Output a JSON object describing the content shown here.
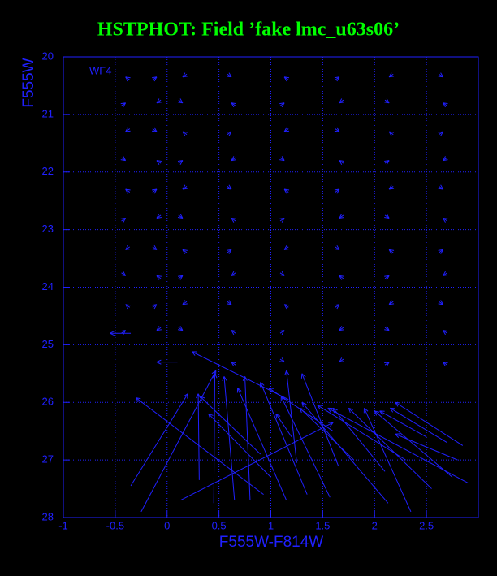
{
  "chart_data": {
    "type": "vector",
    "title": "HSTPHOT: Field ’fake lmc_u63s06’",
    "annotation": "WF4",
    "x_label": "F555W-F814W",
    "y_label": "F555W",
    "color": "#2020ff",
    "title_color": "#00ff00",
    "grid": true,
    "y_inverted": true,
    "xlim": [
      -1,
      3
    ],
    "ylim": [
      20,
      28
    ],
    "xticks": [
      -1,
      -0.5,
      0,
      0.5,
      1,
      1.5,
      2,
      2.5
    ],
    "yticks": [
      20,
      21,
      22,
      23,
      24,
      25,
      26,
      27,
      28
    ],
    "x0": [
      -0.36,
      -0.14,
      0.19,
      0.58,
      1.17,
      1.62,
      2.18,
      2.62,
      -0.44,
      -0.06,
      0.11,
      0.66,
      1.09,
      1.7,
      2.1,
      2.7,
      -0.36,
      -0.14,
      0.19,
      0.58,
      1.17,
      1.62,
      2.18,
      2.62,
      -0.44,
      -0.06,
      0.11,
      0.66,
      1.09,
      1.7,
      2.1,
      2.7,
      -0.36,
      -0.14,
      0.19,
      0.58,
      1.17,
      1.62,
      2.18,
      2.62,
      -0.44,
      -0.06,
      0.11,
      0.66,
      1.09,
      1.7,
      2.1,
      2.7,
      -0.36,
      -0.14,
      0.19,
      0.58,
      1.17,
      1.62,
      2.18,
      2.62,
      -0.44,
      -0.06,
      0.11,
      0.66,
      1.09,
      1.7,
      2.1,
      2.7,
      -0.36,
      -0.14,
      0.19,
      0.58,
      1.17,
      1.62,
      2.18,
      2.62,
      -0.44,
      -0.06,
      0.11,
      0.66,
      1.09,
      1.7,
      2.1,
      2.7,
      0.66,
      1.09,
      1.7,
      2.1,
      2.7,
      -0.35,
      0.1,
      -0.35,
      1.17,
      0.93,
      0.13,
      0.31,
      0.45,
      0.65,
      0.8,
      -0.25,
      1.15,
      1.35,
      1.57,
      1.25,
      0.9,
      1.65,
      2.13,
      2.1,
      2.55,
      2.9,
      2.75,
      2.35,
      2.85,
      2.7,
      2.5,
      2.3,
      1.6,
      1.0,
      2.8,
      1.2,
      1.8
    ],
    "y0": [
      20.4,
      20.4,
      20.3,
      20.3,
      20.4,
      20.4,
      20.3,
      20.3,
      20.85,
      20.75,
      20.75,
      20.85,
      20.85,
      20.75,
      20.75,
      20.85,
      21.25,
      21.25,
      21.35,
      21.35,
      21.25,
      21.25,
      21.35,
      21.35,
      21.75,
      21.85,
      21.85,
      21.75,
      21.75,
      21.85,
      21.85,
      21.75,
      22.35,
      22.35,
      22.25,
      22.25,
      22.35,
      22.35,
      22.25,
      22.25,
      22.85,
      22.75,
      22.75,
      22.85,
      22.85,
      22.75,
      22.75,
      22.85,
      23.3,
      23.3,
      23.4,
      23.4,
      23.3,
      23.3,
      23.4,
      23.4,
      23.75,
      23.85,
      23.85,
      23.75,
      23.75,
      23.85,
      23.85,
      23.75,
      24.35,
      24.35,
      24.25,
      24.25,
      24.35,
      24.35,
      24.25,
      24.25,
      24.8,
      24.7,
      24.7,
      24.8,
      24.8,
      24.7,
      24.7,
      24.8,
      25.35,
      25.25,
      25.25,
      25.35,
      25.35,
      24.8,
      25.3,
      27.45,
      25.95,
      27.6,
      27.7,
      27.35,
      27.75,
      27.7,
      27.7,
      27.9,
      27.7,
      27.6,
      27.65,
      27.05,
      26.9,
      27.1,
      27.75,
      27.2,
      27.5,
      27.4,
      27.3,
      27.9,
      26.75,
      26.7,
      26.6,
      27.0,
      26.5,
      27.3,
      27.0,
      26.6,
      27.0
    ],
    "x1": [
      -0.4,
      -0.1,
      0.15,
      0.62,
      1.13,
      1.66,
      2.14,
      2.66,
      -0.4,
      -0.1,
      0.15,
      0.62,
      1.13,
      1.66,
      2.14,
      2.66,
      -0.4,
      -0.1,
      0.15,
      0.62,
      1.13,
      1.66,
      2.14,
      2.66,
      -0.4,
      -0.1,
      0.15,
      0.62,
      1.13,
      1.66,
      2.14,
      2.66,
      -0.4,
      -0.1,
      0.15,
      0.62,
      1.13,
      1.66,
      2.14,
      2.66,
      -0.4,
      -0.1,
      0.15,
      0.62,
      1.13,
      1.66,
      2.14,
      2.66,
      -0.4,
      -0.1,
      0.15,
      0.62,
      1.13,
      1.66,
      2.14,
      2.66,
      -0.4,
      -0.1,
      0.15,
      0.62,
      1.13,
      1.66,
      2.14,
      2.66,
      -0.4,
      -0.1,
      0.15,
      0.62,
      1.13,
      1.66,
      2.14,
      2.66,
      -0.4,
      -0.1,
      0.15,
      0.62,
      1.13,
      1.66,
      2.14,
      2.66,
      0.62,
      1.13,
      1.66,
      2.14,
      2.66,
      -0.55,
      -0.1,
      0.2,
      0.24,
      -0.3,
      1.6,
      0.3,
      0.46,
      0.55,
      0.75,
      0.47,
      0.68,
      0.9,
      1.1,
      1.15,
      0.32,
      1.3,
      1.3,
      1.6,
      1.75,
      1.55,
      2.0,
      1.9,
      2.2,
      2.15,
      2.05,
      1.45,
      0.98,
      0.4,
      2.2,
      1.05,
      1.28
    ],
    "y1": [
      20.35,
      20.35,
      20.35,
      20.35,
      20.35,
      20.35,
      20.35,
      20.35,
      20.8,
      20.8,
      20.8,
      20.8,
      20.8,
      20.8,
      20.8,
      20.8,
      21.3,
      21.3,
      21.3,
      21.3,
      21.3,
      21.3,
      21.3,
      21.3,
      21.8,
      21.8,
      21.8,
      21.8,
      21.8,
      21.8,
      21.8,
      21.8,
      22.3,
      22.3,
      22.3,
      22.3,
      22.3,
      22.3,
      22.3,
      22.3,
      22.8,
      22.8,
      22.8,
      22.8,
      22.8,
      22.8,
      22.8,
      22.8,
      23.35,
      23.35,
      23.35,
      23.35,
      23.35,
      23.35,
      23.35,
      23.35,
      23.8,
      23.8,
      23.8,
      23.8,
      23.8,
      23.8,
      23.8,
      23.8,
      24.3,
      24.3,
      24.3,
      24.3,
      24.3,
      24.3,
      24.3,
      24.3,
      24.75,
      24.75,
      24.75,
      24.75,
      24.75,
      24.75,
      24.75,
      24.75,
      25.3,
      25.3,
      25.3,
      25.3,
      25.3,
      24.8,
      25.3,
      25.85,
      25.12,
      25.92,
      26.35,
      25.85,
      25.5,
      25.55,
      25.55,
      25.45,
      25.75,
      25.65,
      25.9,
      25.45,
      25.9,
      25.5,
      26.0,
      26.1,
      26.1,
      26.1,
      26.15,
      26.1,
      26.0,
      26.1,
      26.15,
      26.05,
      25.75,
      26.2,
      26.55,
      26.2,
      26.1
    ]
  }
}
